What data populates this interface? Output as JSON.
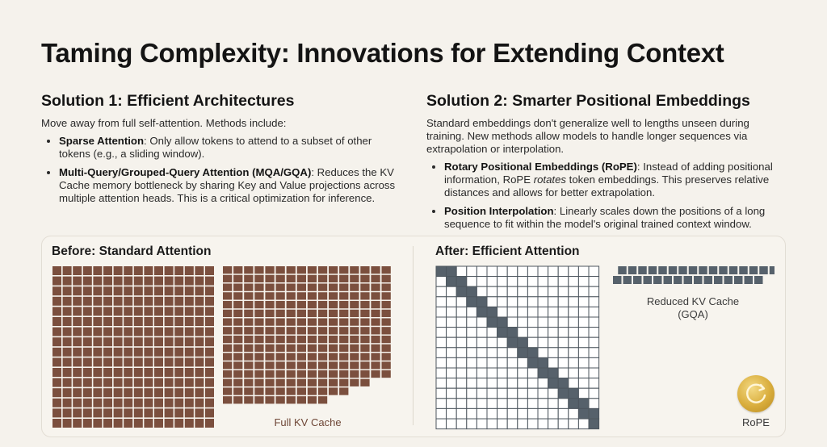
{
  "title": "Taming Complexity: Innovations for Extending Context",
  "solution1": {
    "heading": "Solution 1: Efficient Architectures",
    "intro": "Move away from full self-attention. Methods include:",
    "items": [
      {
        "term": "Sparse Attention",
        "text": ": Only allow tokens to attend to a subset of other tokens (e.g., a sliding window)."
      },
      {
        "term": "Multi-Query/Grouped-Query Attention (MQA/GQA)",
        "text": ": Reduces the KV Cache memory bottleneck by sharing Key and Value projections across multiple attention heads. This is a critical optimization for inference."
      }
    ]
  },
  "solution2": {
    "heading": "Solution 2: Smarter Positional Embeddings",
    "intro": "Standard embeddings don't generalize well to lengths unseen during training. New methods allow models to handle longer sequences via extrapolation or interpolation.",
    "items": [
      {
        "term": "Rotary Positional Embeddings (RoPE)",
        "pre": ": Instead of adding positional information, RoPE ",
        "em": "rotates",
        "post": " token embeddings. This preserves relative distances and allows for better extrapolation."
      },
      {
        "term": "Position Interpolation",
        "text": ": Linearly scales down the positions of a long sequence to fit within the model's original trained context window."
      }
    ]
  },
  "before": {
    "title": "Before: Standard Attention",
    "kv_caption": "Full KV Cache"
  },
  "after": {
    "title": "After: Efficient Attention",
    "kv_caption_line1": "Reduced KV Cache",
    "kv_caption_line2": "(GQA)",
    "rope_label": "RoPE"
  },
  "diagram": {
    "attention_grid_size": 16,
    "kv_full_rows": 16,
    "kv_full_cols": 16,
    "kv_reduced_rows": 2,
    "kv_reduced_cols": 16,
    "sliding_window_width": 2
  },
  "colors": {
    "full_attention_cell": "#7b4f3e",
    "sparse_active_cell": "#56616b",
    "sparse_empty_cell": "#ffffff",
    "grid_line": "#4d565e",
    "kv_reduced_cell": "#56616b",
    "rope_icon": "#d9ad3c"
  }
}
